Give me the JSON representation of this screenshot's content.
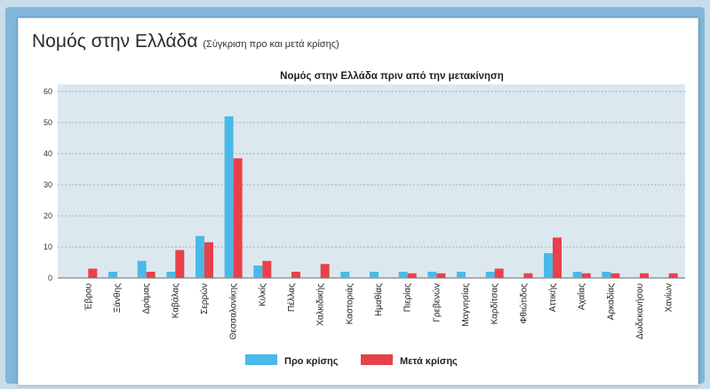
{
  "header": {
    "title": "Νομός στην Ελλάδα",
    "subtitle": "(Σύγκριση προ και μετά κρίσης)"
  },
  "colors": {
    "series_pre": "#4bb9e8",
    "series_post": "#e8414b",
    "plot_background": "#dce8f0"
  },
  "chart_data": {
    "type": "bar",
    "title": "Νομός στην Ελλάδα πριν από την μετακίνηση",
    "xlabel": "",
    "ylabel": "",
    "ylim": [
      0,
      60
    ],
    "yticks": [
      0,
      10,
      20,
      30,
      40,
      50,
      60
    ],
    "grid": true,
    "legend_position": "bottom",
    "categories": [
      "Έβρου",
      "Ξάνθης",
      "Δράμας",
      "Καβάλας",
      "Σερρών",
      "Θεσσαλονίκης",
      "Κιλκίς",
      "Πέλλας",
      "Χαλκιδικής",
      "Καστοριάς",
      "Ημαθίας",
      "Πιερίας",
      "Γρεβενών",
      "Μαγνησίας",
      "Καρδίτσας",
      "Φθιώτιδος",
      "Αττικής",
      "Αχαΐας",
      "Αρκαδίας",
      "Δωδεκανήσου",
      "Χανίων"
    ],
    "series": [
      {
        "name": "Προ κρίσης",
        "values": [
          0,
          2,
          5.5,
          2,
          13.5,
          52,
          4,
          0,
          0,
          2,
          2,
          2,
          2,
          2,
          2,
          0,
          8,
          2,
          2,
          0,
          0
        ]
      },
      {
        "name": "Μετά κρίσης",
        "values": [
          3,
          0,
          2,
          9,
          11.5,
          38.5,
          5.5,
          2,
          4.5,
          0,
          0,
          1.5,
          1.5,
          0,
          3,
          1.5,
          13,
          1.5,
          1.5,
          1.5,
          1.5
        ]
      }
    ]
  }
}
